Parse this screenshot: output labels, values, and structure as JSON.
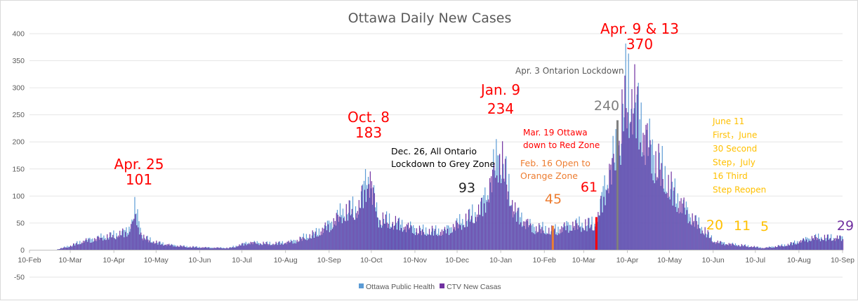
{
  "chart_data": {
    "type": "bar",
    "title": "Ottawa Daily New Cases",
    "xlabel": "",
    "ylabel": "",
    "ylim": [
      -50,
      400
    ],
    "yticks": [
      -50,
      0,
      50,
      100,
      150,
      200,
      250,
      300,
      350,
      400
    ],
    "x_start": "2020-02-10",
    "x_end": "2021-09-10",
    "xticks": [
      "10-Feb",
      "10-Mar",
      "10-Apr",
      "10-May",
      "10-Jun",
      "10-Jul",
      "10-Aug",
      "10-Sep",
      "10-Oct",
      "10-Nov",
      "10-Dec",
      "10-Jan",
      "10-Feb",
      "10-Mar",
      "10-Apr",
      "10-May",
      "10-Jun",
      "10-Jul",
      "10-Aug",
      "10-Sep"
    ],
    "grid": true,
    "legend_position": "bottom",
    "series": [
      {
        "name": "Ottawa Public Health",
        "color": "#5b9bd5",
        "points": [
          [
            "2020-03-01",
            2
          ],
          [
            "2020-03-10",
            10
          ],
          [
            "2020-03-20",
            22
          ],
          [
            "2020-04-01",
            30
          ],
          [
            "2020-04-10",
            35
          ],
          [
            "2020-04-20",
            45
          ],
          [
            "2020-04-25",
            101
          ],
          [
            "2020-05-01",
            30
          ],
          [
            "2020-05-10",
            18
          ],
          [
            "2020-05-20",
            12
          ],
          [
            "2020-06-01",
            8
          ],
          [
            "2020-06-15",
            6
          ],
          [
            "2020-07-01",
            5
          ],
          [
            "2020-07-15",
            18
          ],
          [
            "2020-08-01",
            15
          ],
          [
            "2020-08-15",
            20
          ],
          [
            "2020-09-01",
            40
          ],
          [
            "2020-09-10",
            60
          ],
          [
            "2020-09-20",
            90
          ],
          [
            "2020-10-01",
            100
          ],
          [
            "2020-10-08",
            183
          ],
          [
            "2020-10-15",
            75
          ],
          [
            "2020-11-01",
            60
          ],
          [
            "2020-11-15",
            45
          ],
          [
            "2020-12-01",
            45
          ],
          [
            "2020-12-15",
            70
          ],
          [
            "2020-12-26",
            93
          ],
          [
            "2021-01-01",
            140
          ],
          [
            "2021-01-09",
            234
          ],
          [
            "2021-01-20",
            90
          ],
          [
            "2021-02-01",
            55
          ],
          [
            "2021-02-16",
            45
          ],
          [
            "2021-03-01",
            60
          ],
          [
            "2021-03-19",
            61
          ],
          [
            "2021-03-25",
            150
          ],
          [
            "2021-04-03",
            240
          ],
          [
            "2021-04-09",
            370
          ],
          [
            "2021-04-13",
            370
          ],
          [
            "2021-04-25",
            250
          ],
          [
            "2021-05-10",
            150
          ],
          [
            "2021-05-25",
            80
          ],
          [
            "2021-06-11",
            20
          ],
          [
            "2021-06-20",
            15
          ],
          [
            "2021-07-01",
            11
          ],
          [
            "2021-07-16",
            5
          ],
          [
            "2021-08-01",
            12
          ],
          [
            "2021-08-20",
            30
          ],
          [
            "2021-09-08",
            29
          ]
        ]
      },
      {
        "name": "CTV New Casas",
        "color": "#7030a0",
        "points": [
          [
            "2020-03-01",
            2
          ],
          [
            "2020-03-10",
            10
          ],
          [
            "2020-03-20",
            22
          ],
          [
            "2020-04-01",
            30
          ],
          [
            "2020-04-10",
            35
          ],
          [
            "2020-04-20",
            45
          ],
          [
            "2020-04-25",
            75
          ],
          [
            "2020-05-01",
            30
          ],
          [
            "2020-05-10",
            18
          ],
          [
            "2020-05-20",
            12
          ],
          [
            "2020-06-01",
            8
          ],
          [
            "2020-06-15",
            6
          ],
          [
            "2020-07-01",
            5
          ],
          [
            "2020-07-15",
            18
          ],
          [
            "2020-08-01",
            15
          ],
          [
            "2020-08-15",
            20
          ],
          [
            "2020-09-01",
            40
          ],
          [
            "2020-09-10",
            60
          ],
          [
            "2020-09-20",
            90
          ],
          [
            "2020-10-01",
            100
          ],
          [
            "2020-10-08",
            183
          ],
          [
            "2020-10-15",
            75
          ],
          [
            "2020-11-01",
            60
          ],
          [
            "2020-11-15",
            45
          ],
          [
            "2020-12-01",
            45
          ],
          [
            "2020-12-15",
            70
          ],
          [
            "2020-12-26",
            93
          ],
          [
            "2021-01-01",
            140
          ],
          [
            "2021-01-09",
            234
          ],
          [
            "2021-01-20",
            90
          ],
          [
            "2021-02-01",
            55
          ],
          [
            "2021-02-16",
            45
          ],
          [
            "2021-03-01",
            60
          ],
          [
            "2021-03-19",
            61
          ],
          [
            "2021-03-25",
            150
          ],
          [
            "2021-04-03",
            240
          ],
          [
            "2021-04-09",
            370
          ],
          [
            "2021-04-13",
            370
          ],
          [
            "2021-04-25",
            250
          ],
          [
            "2021-05-10",
            150
          ],
          [
            "2021-05-25",
            80
          ],
          [
            "2021-06-11",
            20
          ],
          [
            "2021-06-20",
            15
          ],
          [
            "2021-07-01",
            11
          ],
          [
            "2021-07-16",
            5
          ],
          [
            "2021-08-01",
            12
          ],
          [
            "2021-08-20",
            30
          ],
          [
            "2021-09-08",
            29
          ]
        ]
      }
    ],
    "highlight_bars": [
      {
        "date": "2021-02-16",
        "value": 45,
        "color": "#ed7d31"
      },
      {
        "date": "2021-03-19",
        "value": 61,
        "color": "#ff0000"
      },
      {
        "date": "2021-04-03",
        "value": 240,
        "color": "#7f7f7f"
      }
    ],
    "annotations": [
      {
        "id": "apr25",
        "lines": [
          "Apr. 25",
          "101"
        ],
        "color": "#ff0000",
        "size": "large"
      },
      {
        "id": "oct8",
        "lines": [
          "Oct. 8",
          "183"
        ],
        "color": "#ff0000",
        "size": "large"
      },
      {
        "id": "dec26",
        "lines": [
          "Dec. 26, All Ontario",
          "Lockdown to Grey Zone"
        ],
        "color": "#000000",
        "size": "small"
      },
      {
        "id": "dec26val",
        "lines": [
          "93"
        ],
        "color": "#262626",
        "size": "large"
      },
      {
        "id": "jan9",
        "lines": [
          "Jan. 9",
          "234"
        ],
        "color": "#ff0000",
        "size": "large"
      },
      {
        "id": "feb16",
        "lines": [
          "Feb. 16 Open to",
          "Orange Zone"
        ],
        "color": "#ed7d31",
        "size": "small"
      },
      {
        "id": "feb16val",
        "lines": [
          "45"
        ],
        "color": "#ed7d31",
        "size": "large"
      },
      {
        "id": "mar19",
        "lines": [
          "Mar. 19 Ottawa",
          "down to Red Zone"
        ],
        "color": "#ff0000",
        "size": "small"
      },
      {
        "id": "mar19val",
        "lines": [
          "61"
        ],
        "color": "#ff0000",
        "size": "large"
      },
      {
        "id": "apr3",
        "lines": [
          "Apr. 3 Ontarion Lockdown"
        ],
        "color": "#595959",
        "size": "small"
      },
      {
        "id": "apr3val",
        "lines": [
          "240"
        ],
        "color": "#7f7f7f",
        "size": "large"
      },
      {
        "id": "apr913",
        "lines": [
          "Apr. 9 & 13",
          "370"
        ],
        "color": "#ff0000",
        "size": "large"
      },
      {
        "id": "june",
        "lines": [
          "June 11",
          "First，June",
          "30 Second",
          "Step，July",
          "16 Third",
          "Step Reopen"
        ],
        "color": "#ffc000",
        "size": "small"
      },
      {
        "id": "v20",
        "lines": [
          "20"
        ],
        "color": "#ffc000",
        "size": "large"
      },
      {
        "id": "v11",
        "lines": [
          "11"
        ],
        "color": "#ffc000",
        "size": "large"
      },
      {
        "id": "v5",
        "lines": [
          "5"
        ],
        "color": "#ffc000",
        "size": "large"
      },
      {
        "id": "v29",
        "lines": [
          "29"
        ],
        "color": "#7030a0",
        "size": "large"
      }
    ]
  }
}
